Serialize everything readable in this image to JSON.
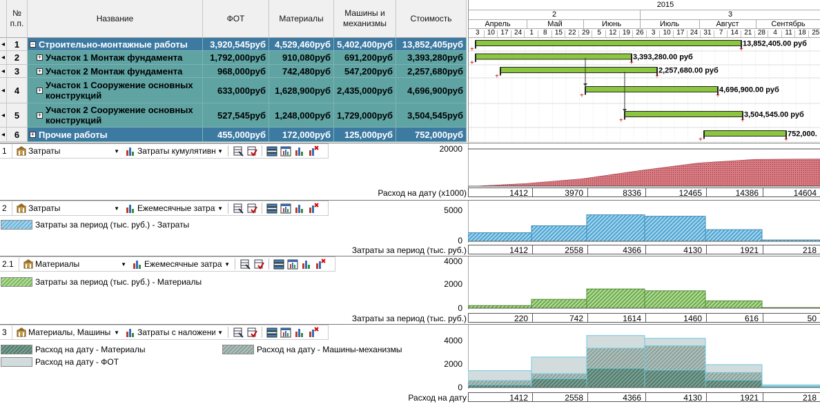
{
  "grid": {
    "headers": {
      "num": "№ п.п.",
      "name": "Название",
      "fot": "ФОТ",
      "materials": "Материалы",
      "machines": "Машины и механизмы",
      "cost": "Стоимость"
    },
    "rows": [
      {
        "idx": "1",
        "name": "Строительно-монтажные работы",
        "fot": "3,920,545руб",
        "mat": "4,529,460руб",
        "mach": "5,402,400руб",
        "cost": "13,852,405руб",
        "kind": "group",
        "exp": "−"
      },
      {
        "idx": "2",
        "name": "Участок 1 Монтаж фундамента",
        "fot": "1,792,000руб",
        "mat": "910,080руб",
        "mach": "691,200руб",
        "cost": "3,393,280руб",
        "kind": "sub",
        "exp": "+"
      },
      {
        "idx": "3",
        "name": "Участок 2 Монтаж фундамента",
        "fot": "968,000руб",
        "mat": "742,480руб",
        "mach": "547,200руб",
        "cost": "2,257,680руб",
        "kind": "sub",
        "exp": "+"
      },
      {
        "idx": "4",
        "name": "Участок 1 Сооружение основных конструкций",
        "fot": "633,000руб",
        "mat": "1,628,900руб",
        "mach": "2,435,000руб",
        "cost": "4,696,900руб",
        "kind": "sub",
        "exp": "+"
      },
      {
        "idx": "5",
        "name": "Участок 2 Сооружение основных конструкций",
        "fot": "527,545руб",
        "mat": "1,248,000руб",
        "mach": "1,729,000руб",
        "cost": "3,504,545руб",
        "kind": "sub",
        "exp": "+"
      },
      {
        "idx": "6",
        "name": "Прочие работы",
        "fot": "455,000руб",
        "mat": "172,000руб",
        "mach": "125,000руб",
        "cost": "752,000руб",
        "kind": "group",
        "exp": "+"
      }
    ]
  },
  "gantt": {
    "year": "2015",
    "quarters": [
      "2",
      "3"
    ],
    "months": [
      "Апрель",
      "Май",
      "Июнь",
      "Июль",
      "Август",
      "Сентябрь"
    ],
    "days": [
      "3",
      "10",
      "17",
      "24",
      "1",
      "8",
      "15",
      "22",
      "29",
      "5",
      "12",
      "19",
      "26",
      "3",
      "10",
      "17",
      "24",
      "31",
      "7",
      "14",
      "21",
      "28",
      "4",
      "11",
      "18",
      "25"
    ],
    "bar_labels": [
      "13,852,405.00 руб",
      "3,393,280.00 руб",
      "2,257,680.00 руб",
      "4,696,900.00 руб",
      "3,504,545.00 руб",
      "752,000."
    ]
  },
  "panels": [
    {
      "num": "1",
      "combo1": "Затраты",
      "combo2": "Затраты кумулятивны",
      "axis_label": "Расход на дату (x1000)",
      "yticks": [
        "20000"
      ],
      "values": [
        "1412",
        "3970",
        "8336",
        "12465",
        "14386",
        "14604"
      ]
    },
    {
      "num": "2",
      "combo1": "Затраты",
      "combo2": "Ежемесячные затрат",
      "legend": [
        "Затраты за период (тыс. руб.) - Затраты"
      ],
      "axis_label": "Затраты за период (тыс. руб.)",
      "yticks": [
        "5000",
        "0"
      ],
      "values": [
        "1412",
        "2558",
        "4366",
        "4130",
        "1921",
        "218"
      ]
    },
    {
      "num": "2.1",
      "combo1": "Материалы",
      "combo2": "Ежемесячные затрат",
      "legend": [
        "Затраты за период (тыс. руб.) - Материалы"
      ],
      "axis_label": "Затраты за период (тыс. руб.)",
      "yticks": [
        "4000",
        "2000",
        "0"
      ],
      "values": [
        "220",
        "742",
        "1614",
        "1460",
        "616",
        "50"
      ]
    },
    {
      "num": "3",
      "combo1": "Материалы, Машины",
      "combo2": "Затраты с наложени",
      "legend": [
        "Расход на дату - Материалы",
        "Расход на дату - Машины-механизмы",
        "Расход на дату - ФОТ"
      ],
      "axis_label": "Расход на дату",
      "yticks": [
        "4000",
        "2000",
        "0"
      ],
      "values": [
        "1412",
        "2558",
        "4366",
        "4130",
        "1921",
        "218"
      ]
    }
  ],
  "chart_data": [
    {
      "type": "area",
      "categories": [
        "Апрель",
        "Май",
        "Июнь",
        "Июль",
        "Август",
        "Сентябрь"
      ],
      "series": [
        {
          "name": "",
          "values": [
            1412,
            3970,
            8336,
            12465,
            14386,
            14604
          ]
        }
      ],
      "ylabel": "Расход на дату (x1000)",
      "ylim": [
        0,
        20000
      ],
      "color": "#c0505a"
    },
    {
      "type": "bar",
      "categories": [
        "Апрель",
        "Май",
        "Июнь",
        "Июль",
        "Август",
        "Сентябрь"
      ],
      "series": [
        {
          "name": "Затраты за период (тыс. руб.) - Затраты",
          "values": [
            1412,
            2558,
            4366,
            4130,
            1921,
            218
          ]
        }
      ],
      "ylabel": "Затраты за период (тыс. руб.)",
      "ylim": [
        0,
        5000
      ],
      "color": "#69b3d8"
    },
    {
      "type": "bar",
      "categories": [
        "Апрель",
        "Май",
        "Июнь",
        "Июль",
        "Август",
        "Сентябрь"
      ],
      "series": [
        {
          "name": "Затраты за период (тыс. руб.) - Материалы",
          "values": [
            220,
            742,
            1614,
            1460,
            616,
            50
          ]
        }
      ],
      "ylabel": "Затраты за период (тыс. руб.)",
      "ylim": [
        0,
        4000
      ],
      "color": "#7ab85a"
    },
    {
      "type": "bar",
      "categories": [
        "Апрель",
        "Май",
        "Июнь",
        "Июль",
        "Август",
        "Сентябрь"
      ],
      "series": [
        {
          "name": "Расход на дату - Материалы",
          "values": [
            220,
            742,
            1614,
            1460,
            616,
            50
          ]
        },
        {
          "name": "Расход на дату - Машины-механизмы",
          "values": [
            580,
            1150,
            3300,
            3500,
            1250,
            120
          ]
        },
        {
          "name": "Расход на дату - ФОТ",
          "values": [
            1412,
            2558,
            4366,
            4130,
            1921,
            218
          ]
        }
      ],
      "ylabel": "Расход на дату",
      "ylim": [
        0,
        4500
      ],
      "colors": [
        "#5e8a7c",
        "#96aaa5",
        "#d2dcdc"
      ]
    }
  ]
}
